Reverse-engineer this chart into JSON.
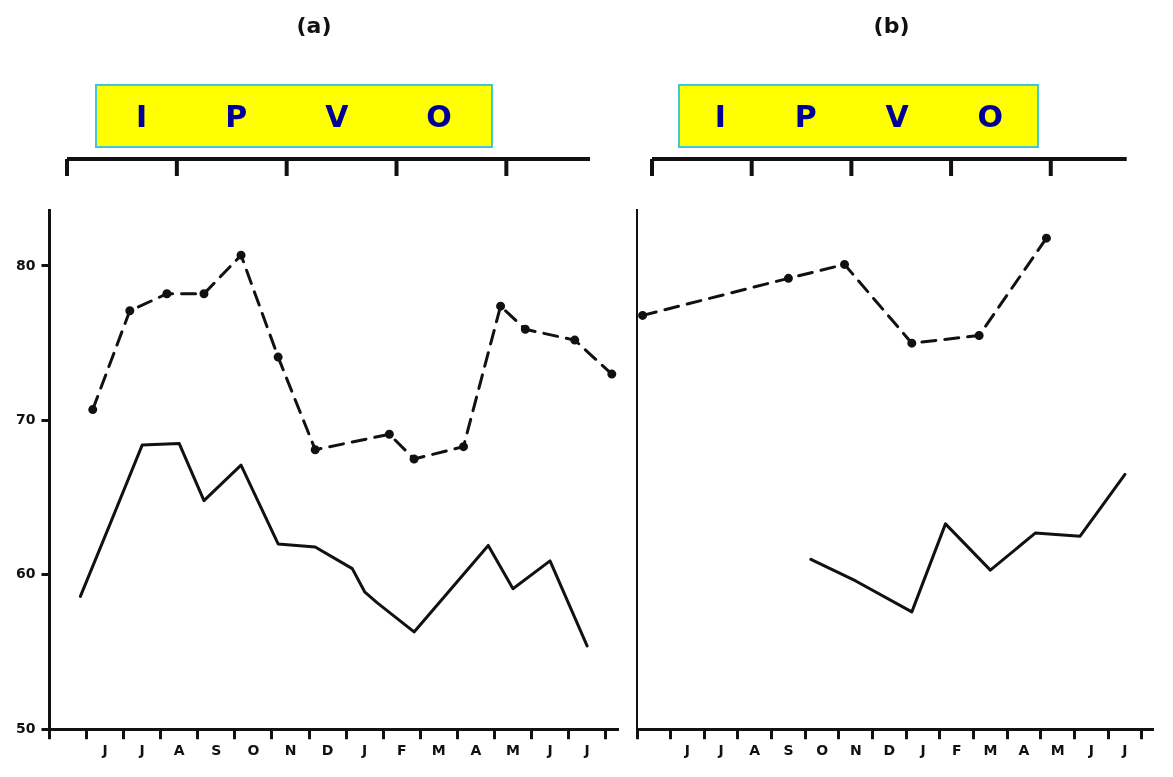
{
  "chart_data": [
    {
      "type": "line",
      "title": "(a)",
      "ylim": [
        50,
        83.6
      ],
      "yticks": [
        50,
        60,
        70,
        80
      ],
      "annotations": [
        "I",
        "P",
        "V",
        "O"
      ],
      "categories": [
        null,
        null,
        null,
        null,
        "J",
        null,
        null,
        "J",
        null,
        null,
        "A",
        null,
        null,
        "S",
        null,
        null,
        "O",
        null,
        null,
        "N",
        null,
        null,
        "D",
        null,
        null,
        "J",
        null,
        null,
        "F",
        null,
        null,
        "M",
        null,
        null,
        "A",
        null,
        null,
        "M",
        null,
        null,
        "J",
        null,
        null,
        "J",
        null,
        null
      ],
      "series": [
        {
          "color": "#111111",
          "line_style": "solid",
          "marker": "none",
          "values": [
            null,
            null,
            58.6,
            null,
            62.5,
            null,
            null,
            68.4,
            null,
            null,
            68.5,
            null,
            64.8,
            null,
            null,
            67.1,
            null,
            null,
            62.0,
            null,
            null,
            61.8,
            null,
            null,
            60.4,
            58.9,
            58.2,
            null,
            null,
            56.3,
            null,
            null,
            null,
            null,
            null,
            61.9,
            null,
            59.1,
            null,
            null,
            60.9,
            null,
            null,
            55.4,
            null,
            null
          ]
        },
        {
          "color": "#111111",
          "line_style": "dashed",
          "marker": "circle",
          "values": [
            null,
            null,
            null,
            70.7,
            null,
            null,
            77.1,
            null,
            null,
            78.2,
            null,
            null,
            78.2,
            null,
            null,
            80.7,
            null,
            null,
            74.1,
            null,
            null,
            68.1,
            null,
            null,
            null,
            null,
            null,
            69.1,
            null,
            67.5,
            null,
            null,
            null,
            68.3,
            null,
            null,
            77.4,
            null,
            75.9,
            null,
            null,
            null,
            75.2,
            null,
            null,
            73.0
          ]
        }
      ]
    },
    {
      "type": "line",
      "title": "(b)",
      "ylim": [
        50,
        83.6
      ],
      "yticks": [
        50,
        60,
        70,
        80
      ],
      "tick_labels": "x",
      "annotations": [
        "I",
        "P",
        "V",
        "O"
      ],
      "categories": [
        null,
        null,
        null,
        null,
        "J",
        null,
        null,
        "J",
        null,
        null,
        "A",
        null,
        null,
        "S",
        null,
        null,
        "O",
        null,
        null,
        "N",
        null,
        null,
        "D",
        null,
        null,
        "J",
        null,
        null,
        "F",
        null,
        null,
        "M",
        null,
        null,
        "A",
        null,
        null,
        "M",
        null,
        null,
        "J",
        null,
        null,
        "J",
        null,
        null
      ],
      "series": [
        {
          "color": "#111111",
          "line_style": "solid",
          "marker": "none",
          "values": [
            null,
            null,
            null,
            null,
            null,
            null,
            null,
            null,
            null,
            null,
            null,
            null,
            null,
            null,
            null,
            61.0,
            null,
            null,
            null,
            59.6,
            null,
            null,
            null,
            null,
            57.6,
            null,
            null,
            63.3,
            null,
            null,
            null,
            60.3,
            null,
            null,
            null,
            62.7,
            null,
            null,
            null,
            62.5,
            null,
            null,
            null,
            66.5,
            null,
            null
          ]
        },
        {
          "color": "#111111",
          "line_style": "dashed",
          "marker": "circle",
          "values": [
            76.8,
            null,
            null,
            null,
            null,
            null,
            null,
            null,
            null,
            null,
            null,
            null,
            null,
            79.2,
            null,
            null,
            null,
            null,
            80.1,
            null,
            null,
            null,
            null,
            null,
            75.0,
            null,
            null,
            null,
            null,
            null,
            75.5,
            null,
            null,
            null,
            null,
            null,
            81.8,
            null,
            null,
            null,
            null,
            null,
            null,
            null,
            null,
            null
          ]
        }
      ]
    }
  ]
}
